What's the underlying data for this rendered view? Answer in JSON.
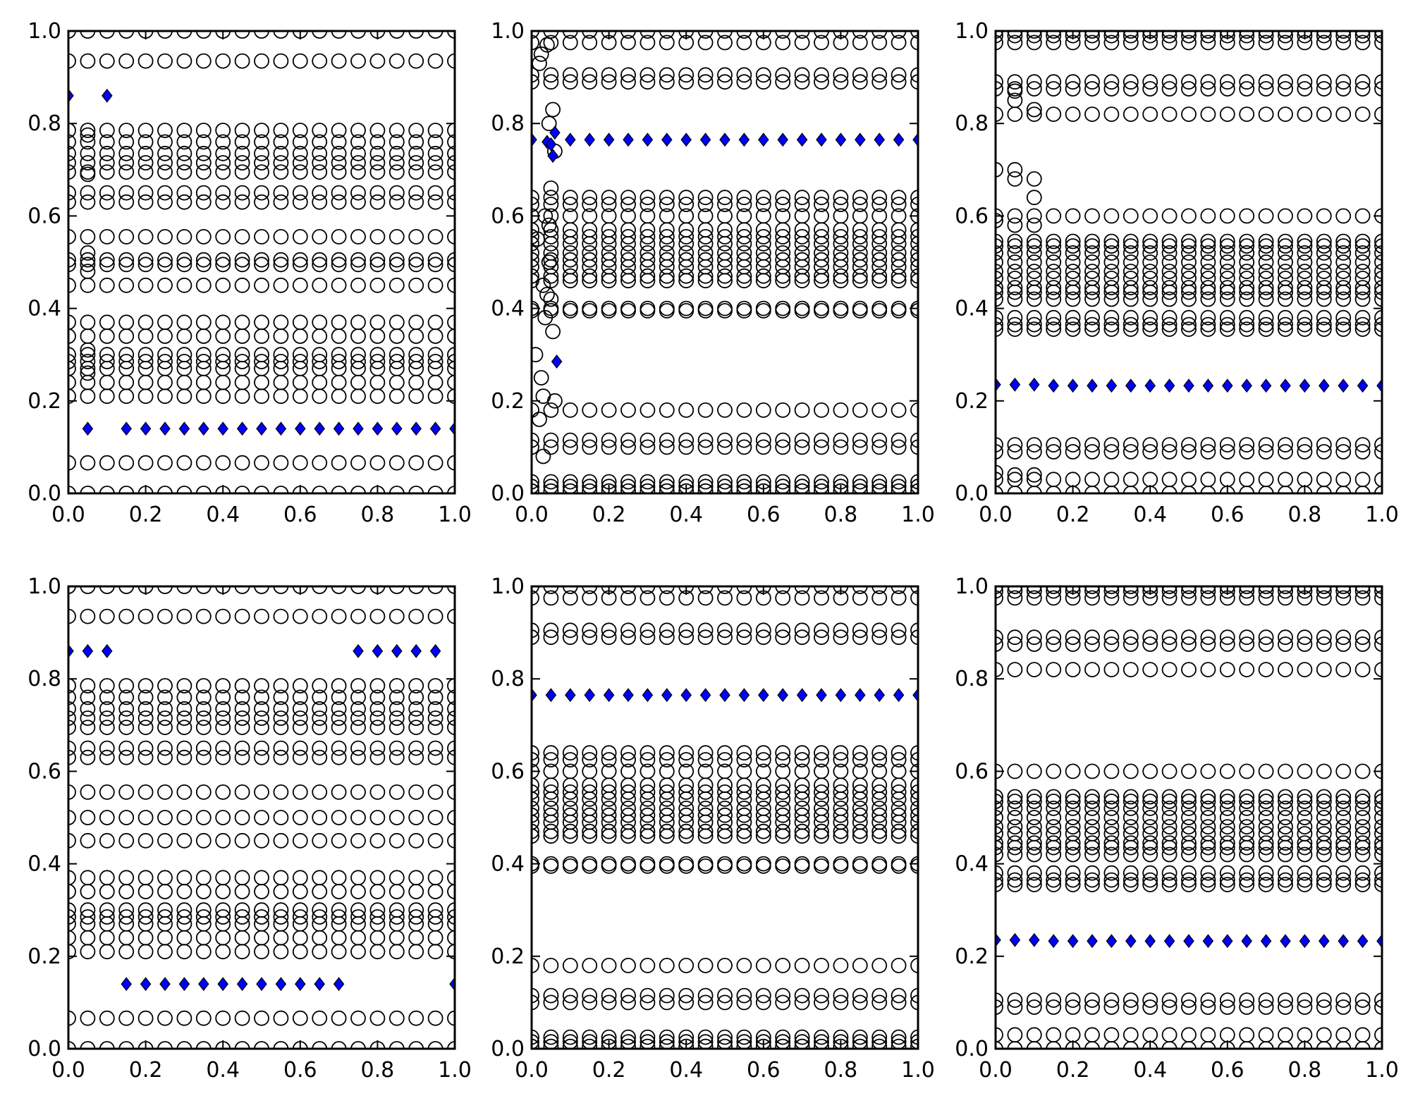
{
  "colors": {
    "circle_edge": "#000000",
    "circle_fill": "none",
    "diamond_fill": "#0000ff",
    "diamond_edge": "#000000",
    "frame": "#000000",
    "background": "#ffffff"
  },
  "chart_data": [
    {
      "type": "scatter",
      "title": "",
      "xlabel": "",
      "ylabel": "",
      "xlim": [
        0,
        1
      ],
      "ylim": [
        0,
        1
      ],
      "xticks": [
        "0.0",
        "0.2",
        "0.4",
        "0.6",
        "0.8",
        "1.0"
      ],
      "yticks": [
        "0.0",
        "0.2",
        "0.4",
        "0.6",
        "0.8",
        "1.0"
      ],
      "grid": false,
      "x": [
        0,
        0.05,
        0.1,
        0.15,
        0.2,
        0.25,
        0.3,
        0.35,
        0.4,
        0.45,
        0.5,
        0.55,
        0.6,
        0.65,
        0.7,
        0.75,
        0.8,
        0.85,
        0.9,
        0.95,
        1
      ],
      "circle_levels": [
        0,
        0.066,
        0.21,
        0.24,
        0.27,
        0.285,
        0.3,
        0.34,
        0.37,
        0.45,
        0.495,
        0.505,
        0.555,
        0.63,
        0.65,
        0.695,
        0.715,
        0.735,
        0.76,
        0.785,
        0.935,
        1
      ],
      "circle_early": [
        [
          0.05,
          0.26
        ],
        [
          0.05,
          0.31
        ],
        [
          0.05,
          0.48
        ],
        [
          0.05,
          0.52
        ],
        [
          0.05,
          0.69
        ],
        [
          0.05,
          0.775
        ]
      ],
      "diamonds": [
        [
          0,
          0.86
        ],
        [
          0.1,
          0.86
        ],
        [
          0.05,
          0.14
        ],
        [
          0.15,
          0.14
        ],
        [
          0.2,
          0.14
        ],
        [
          0.25,
          0.14
        ],
        [
          0.3,
          0.14
        ],
        [
          0.35,
          0.14
        ],
        [
          0.4,
          0.14
        ],
        [
          0.45,
          0.14
        ],
        [
          0.5,
          0.14
        ],
        [
          0.55,
          0.14
        ],
        [
          0.6,
          0.14
        ],
        [
          0.65,
          0.14
        ],
        [
          0.7,
          0.14
        ],
        [
          0.75,
          0.14
        ],
        [
          0.8,
          0.14
        ],
        [
          0.85,
          0.14
        ],
        [
          0.9,
          0.14
        ],
        [
          0.95,
          0.14
        ],
        [
          1,
          0.14
        ]
      ]
    },
    {
      "type": "scatter",
      "title": "",
      "xlabel": "",
      "ylabel": "",
      "xlim": [
        0,
        1
      ],
      "ylim": [
        0,
        1
      ],
      "xticks": [
        "0.0",
        "0.2",
        "0.4",
        "0.6",
        "0.8",
        "1.0"
      ],
      "yticks": [
        "0.0",
        "0.2",
        "0.4",
        "0.6",
        "0.8",
        "1.0"
      ],
      "grid": false,
      "x": [
        0,
        0.05,
        0.1,
        0.15,
        0.2,
        0.25,
        0.3,
        0.35,
        0.4,
        0.45,
        0.5,
        0.55,
        0.6,
        0.65,
        0.7,
        0.75,
        0.8,
        0.85,
        0.9,
        0.95,
        1
      ],
      "circle_levels": [
        0.005,
        0.015,
        0.025,
        0.1,
        0.115,
        0.18,
        0.395,
        0.4,
        0.46,
        0.47,
        0.49,
        0.505,
        0.52,
        0.54,
        0.555,
        0.57,
        0.6,
        0.625,
        0.64,
        0.89,
        0.905,
        0.975,
        1
      ],
      "circle_early": [
        [
          0.01,
          0.3
        ],
        [
          0.02,
          0.16
        ],
        [
          0.025,
          0.25
        ],
        [
          0.03,
          0.08
        ],
        [
          0.03,
          0.21
        ],
        [
          0.035,
          0.38
        ],
        [
          0.04,
          0.43
        ],
        [
          0.045,
          0.58
        ],
        [
          0.05,
          0.66
        ],
        [
          0.055,
          0.83
        ],
        [
          0.06,
          0.2
        ],
        [
          0.03,
          0.45
        ],
        [
          0.045,
          0.5
        ],
        [
          0.05,
          0.42
        ],
        [
          0.015,
          0.55
        ],
        [
          0.035,
          0.6
        ],
        [
          0.055,
          0.35
        ],
        [
          0.025,
          0.95
        ],
        [
          0.045,
          0.8
        ],
        [
          0.06,
          0.74
        ],
        [
          0.02,
          0.93
        ],
        [
          0.04,
          0.97
        ]
      ],
      "diamonds": [
        [
          0.04,
          0.76
        ],
        [
          0.05,
          0.755
        ],
        [
          0.055,
          0.73
        ],
        [
          0.06,
          0.78
        ],
        [
          0.065,
          0.285
        ],
        [
          0,
          0.765
        ],
        [
          0.1,
          0.765
        ],
        [
          0.15,
          0.765
        ],
        [
          0.2,
          0.765
        ],
        [
          0.25,
          0.765
        ],
        [
          0.3,
          0.765
        ],
        [
          0.35,
          0.765
        ],
        [
          0.4,
          0.765
        ],
        [
          0.45,
          0.765
        ],
        [
          0.5,
          0.765
        ],
        [
          0.55,
          0.765
        ],
        [
          0.6,
          0.765
        ],
        [
          0.65,
          0.765
        ],
        [
          0.7,
          0.765
        ],
        [
          0.75,
          0.765
        ],
        [
          0.8,
          0.765
        ],
        [
          0.85,
          0.765
        ],
        [
          0.9,
          0.765
        ],
        [
          0.95,
          0.765
        ],
        [
          1,
          0.765
        ]
      ]
    },
    {
      "type": "scatter",
      "title": "",
      "xlabel": "",
      "ylabel": "",
      "xlim": [
        0,
        1
      ],
      "ylim": [
        0,
        1
      ],
      "xticks": [
        "0.0",
        "0.2",
        "0.4",
        "0.6",
        "0.8",
        "1.0"
      ],
      "yticks": [
        "0.0",
        "0.2",
        "0.4",
        "0.6",
        "0.8",
        "1.0"
      ],
      "grid": false,
      "x": [
        0,
        0.05,
        0.1,
        0.15,
        0.2,
        0.25,
        0.3,
        0.35,
        0.4,
        0.45,
        0.5,
        0.55,
        0.6,
        0.65,
        0.7,
        0.75,
        0.8,
        0.85,
        0.9,
        0.95,
        1
      ],
      "circle_levels": [
        0,
        0.03,
        0.09,
        0.105,
        0.355,
        0.365,
        0.38,
        0.42,
        0.435,
        0.445,
        0.465,
        0.48,
        0.5,
        0.52,
        0.535,
        0.545,
        0.6,
        0.82,
        0.875,
        0.89,
        0.975,
        0.99,
        1
      ],
      "circle_early": [
        [
          0,
          0.7
        ],
        [
          0.05,
          0.7
        ],
        [
          0.05,
          0.68
        ],
        [
          0.1,
          0.68
        ],
        [
          0.1,
          0.64
        ],
        [
          0,
          0.59
        ],
        [
          0.05,
          0.58
        ],
        [
          0.1,
          0.58
        ],
        [
          0.05,
          0.85
        ],
        [
          0.1,
          0.83
        ],
        [
          0.05,
          0.87
        ],
        [
          0,
          0.045
        ],
        [
          0.05,
          0.04
        ],
        [
          0.1,
          0.04
        ]
      ],
      "diamonds": [
        [
          0,
          0.235
        ],
        [
          0.05,
          0.235
        ],
        [
          0.1,
          0.235
        ],
        [
          0.15,
          0.233
        ],
        [
          0.2,
          0.233
        ],
        [
          0.25,
          0.233
        ],
        [
          0.3,
          0.233
        ],
        [
          0.35,
          0.233
        ],
        [
          0.4,
          0.233
        ],
        [
          0.45,
          0.233
        ],
        [
          0.5,
          0.233
        ],
        [
          0.55,
          0.233
        ],
        [
          0.6,
          0.233
        ],
        [
          0.65,
          0.233
        ],
        [
          0.7,
          0.233
        ],
        [
          0.75,
          0.233
        ],
        [
          0.8,
          0.233
        ],
        [
          0.85,
          0.233
        ],
        [
          0.9,
          0.233
        ],
        [
          0.95,
          0.233
        ],
        [
          1,
          0.233
        ]
      ]
    },
    {
      "type": "scatter",
      "title": "",
      "xlabel": "",
      "ylabel": "",
      "xlim": [
        0,
        1
      ],
      "ylim": [
        0,
        1
      ],
      "xticks": [
        "0.0",
        "0.2",
        "0.4",
        "0.6",
        "0.8",
        "1.0"
      ],
      "yticks": [
        "0.0",
        "0.2",
        "0.4",
        "0.6",
        "0.8",
        "1.0"
      ],
      "grid": false,
      "x": [
        0,
        0.05,
        0.1,
        0.15,
        0.2,
        0.25,
        0.3,
        0.35,
        0.4,
        0.45,
        0.5,
        0.55,
        0.6,
        0.65,
        0.7,
        0.75,
        0.8,
        0.85,
        0.9,
        0.95,
        1
      ],
      "circle_levels": [
        0,
        0.066,
        0.21,
        0.24,
        0.27,
        0.285,
        0.3,
        0.34,
        0.37,
        0.45,
        0.5,
        0.555,
        0.63,
        0.65,
        0.695,
        0.715,
        0.735,
        0.76,
        0.785,
        0.935,
        1
      ],
      "circle_early": [],
      "diamonds": [
        [
          0,
          0.86
        ],
        [
          0.05,
          0.86
        ],
        [
          0.1,
          0.86
        ],
        [
          0.75,
          0.86
        ],
        [
          0.8,
          0.86
        ],
        [
          0.85,
          0.86
        ],
        [
          0.9,
          0.86
        ],
        [
          0.95,
          0.86
        ],
        [
          0.15,
          0.14
        ],
        [
          0.2,
          0.14
        ],
        [
          0.25,
          0.14
        ],
        [
          0.3,
          0.14
        ],
        [
          0.35,
          0.14
        ],
        [
          0.4,
          0.14
        ],
        [
          0.45,
          0.14
        ],
        [
          0.5,
          0.14
        ],
        [
          0.55,
          0.14
        ],
        [
          0.6,
          0.14
        ],
        [
          0.65,
          0.14
        ],
        [
          0.7,
          0.14
        ],
        [
          1,
          0.14
        ]
      ]
    },
    {
      "type": "scatter",
      "title": "",
      "xlabel": "",
      "ylabel": "",
      "xlim": [
        0,
        1
      ],
      "ylim": [
        0,
        1
      ],
      "xticks": [
        "0.0",
        "0.2",
        "0.4",
        "0.6",
        "0.8",
        "1.0"
      ],
      "yticks": [
        "0.0",
        "0.2",
        "0.4",
        "0.6",
        "0.8",
        "1.0"
      ],
      "grid": false,
      "x": [
        0,
        0.05,
        0.1,
        0.15,
        0.2,
        0.25,
        0.3,
        0.35,
        0.4,
        0.45,
        0.5,
        0.55,
        0.6,
        0.65,
        0.7,
        0.75,
        0.8,
        0.85,
        0.9,
        0.95,
        1
      ],
      "circle_levels": [
        0.005,
        0.015,
        0.025,
        0.1,
        0.115,
        0.18,
        0.395,
        0.4,
        0.46,
        0.47,
        0.49,
        0.505,
        0.52,
        0.54,
        0.555,
        0.57,
        0.6,
        0.625,
        0.64,
        0.89,
        0.905,
        0.975,
        1
      ],
      "circle_early": [],
      "diamonds": [
        [
          0,
          0.765
        ],
        [
          0.05,
          0.765
        ],
        [
          0.1,
          0.765
        ],
        [
          0.15,
          0.765
        ],
        [
          0.2,
          0.765
        ],
        [
          0.25,
          0.765
        ],
        [
          0.3,
          0.765
        ],
        [
          0.35,
          0.765
        ],
        [
          0.4,
          0.765
        ],
        [
          0.45,
          0.765
        ],
        [
          0.5,
          0.765
        ],
        [
          0.55,
          0.765
        ],
        [
          0.6,
          0.765
        ],
        [
          0.65,
          0.765
        ],
        [
          0.7,
          0.765
        ],
        [
          0.75,
          0.765
        ],
        [
          0.8,
          0.765
        ],
        [
          0.85,
          0.765
        ],
        [
          0.9,
          0.765
        ],
        [
          0.95,
          0.765
        ],
        [
          1,
          0.765
        ]
      ]
    },
    {
      "type": "scatter",
      "title": "",
      "xlabel": "",
      "ylabel": "",
      "xlim": [
        0,
        1
      ],
      "ylim": [
        0,
        1
      ],
      "xticks": [
        "0.0",
        "0.2",
        "0.4",
        "0.6",
        "0.8",
        "1.0"
      ],
      "yticks": [
        "0.0",
        "0.2",
        "0.4",
        "0.6",
        "0.8",
        "1.0"
      ],
      "grid": false,
      "x": [
        0,
        0.05,
        0.1,
        0.15,
        0.2,
        0.25,
        0.3,
        0.35,
        0.4,
        0.45,
        0.5,
        0.55,
        0.6,
        0.65,
        0.7,
        0.75,
        0.8,
        0.85,
        0.9,
        0.95,
        1
      ],
      "circle_levels": [
        0,
        0.03,
        0.09,
        0.105,
        0.355,
        0.365,
        0.38,
        0.42,
        0.435,
        0.445,
        0.465,
        0.48,
        0.5,
        0.52,
        0.535,
        0.545,
        0.6,
        0.82,
        0.875,
        0.89,
        0.975,
        0.99,
        1
      ],
      "circle_early": [],
      "diamonds": [
        [
          0,
          0.235
        ],
        [
          0.05,
          0.235
        ],
        [
          0.1,
          0.235
        ],
        [
          0.15,
          0.233
        ],
        [
          0.2,
          0.233
        ],
        [
          0.25,
          0.233
        ],
        [
          0.3,
          0.233
        ],
        [
          0.35,
          0.233
        ],
        [
          0.4,
          0.233
        ],
        [
          0.45,
          0.233
        ],
        [
          0.5,
          0.233
        ],
        [
          0.55,
          0.233
        ],
        [
          0.6,
          0.233
        ],
        [
          0.65,
          0.233
        ],
        [
          0.7,
          0.233
        ],
        [
          0.75,
          0.233
        ],
        [
          0.8,
          0.233
        ],
        [
          0.85,
          0.233
        ],
        [
          0.9,
          0.233
        ],
        [
          0.95,
          0.233
        ],
        [
          1,
          0.233
        ]
      ]
    }
  ]
}
